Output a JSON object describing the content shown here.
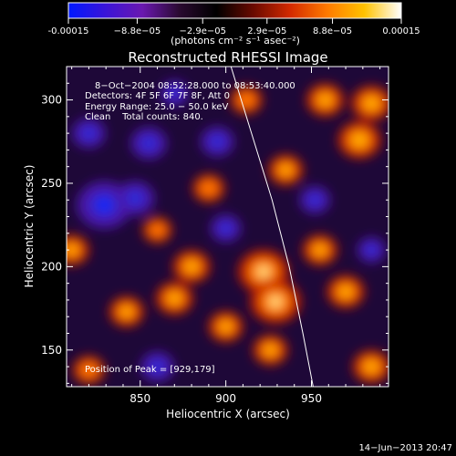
{
  "chart_data": {
    "type": "heatmap",
    "title": "Reconstructed RHESSI Image",
    "xlabel": "Heliocentric X (arcsec)",
    "ylabel": "Heliocentric Y (arcsec)",
    "xlim": [
      807,
      995
    ],
    "ylim": [
      128,
      320
    ],
    "x_ticks": [
      850,
      900,
      950
    ],
    "y_ticks": [
      150,
      200,
      250,
      300
    ],
    "colorbar": {
      "range": [
        -0.00015,
        0.00015
      ],
      "tick_values": [
        -0.00015,
        -8.8e-05,
        -2.9e-05,
        2.9e-05,
        8.8e-05,
        0.00015
      ],
      "tick_labels": [
        "-0.00015",
        "−8.8e−05",
        "−2.9e−05",
        "2.9e−05",
        "8.8e−05",
        "0.00015"
      ],
      "unit_label": "(photons cm⁻² s⁻¹ asec⁻²)",
      "colors": [
        "#0018ff",
        "#3a14d8",
        "#6a18b0",
        "#2a0a30",
        "#000000",
        "#6a0a00",
        "#d42a00",
        "#ff7a00",
        "#ffc200",
        "#ffffff"
      ]
    },
    "info_lines": [
      "8−Oct−2004 08:52:28.000 to 08:53:40.000",
      "Detectors: 4F 5F 6F 7F 8F, Att 0",
      "Energy Range: 25.0 − 50.0 keV",
      "Clean    Total counts: 840."
    ],
    "peak_label": "Position of Peak = [929,179]",
    "peak_position": [
      929,
      179
    ],
    "limb_curve": [
      [
        903,
        320
      ],
      [
        915,
        280
      ],
      [
        927,
        240
      ],
      [
        937,
        200
      ],
      [
        945,
        160
      ],
      [
        951,
        128
      ]
    ],
    "hot_spots": [
      {
        "x": 922,
        "y": 197,
        "value": 0.00015
      },
      {
        "x": 929,
        "y": 179,
        "value": 0.00015
      },
      {
        "x": 880,
        "y": 200,
        "value": 0.0001
      },
      {
        "x": 870,
        "y": 181,
        "value": 0.0001
      },
      {
        "x": 842,
        "y": 173,
        "value": 9e-05
      },
      {
        "x": 900,
        "y": 164,
        "value": 9e-05
      },
      {
        "x": 978,
        "y": 276,
        "value": 0.00012
      },
      {
        "x": 985,
        "y": 298,
        "value": 0.00011
      },
      {
        "x": 958,
        "y": 300,
        "value": 0.0001
      },
      {
        "x": 970,
        "y": 185,
        "value": 0.0001
      },
      {
        "x": 955,
        "y": 210,
        "value": 9e-05
      },
      {
        "x": 935,
        "y": 258,
        "value": 9e-05
      },
      {
        "x": 810,
        "y": 210,
        "value": 9e-05
      },
      {
        "x": 985,
        "y": 140,
        "value": 0.0001
      },
      {
        "x": 926,
        "y": 150,
        "value": 9e-05
      },
      {
        "x": 820,
        "y": 138,
        "value": 8e-05
      },
      {
        "x": 912,
        "y": 300,
        "value": 8e-05
      },
      {
        "x": 890,
        "y": 247,
        "value": 8e-05
      },
      {
        "x": 860,
        "y": 222,
        "value": 7e-05
      }
    ],
    "cold_spots": [
      {
        "x": 829,
        "y": 237,
        "value": -0.00015
      },
      {
        "x": 847,
        "y": 241,
        "value": -9e-05
      },
      {
        "x": 855,
        "y": 274,
        "value": -8e-05
      },
      {
        "x": 820,
        "y": 280,
        "value": -7e-05
      },
      {
        "x": 895,
        "y": 275,
        "value": -7e-05
      },
      {
        "x": 860,
        "y": 140,
        "value": -7e-05
      },
      {
        "x": 900,
        "y": 223,
        "value": -6e-05
      },
      {
        "x": 952,
        "y": 240,
        "value": -6e-05
      },
      {
        "x": 870,
        "y": 304,
        "value": -5e-05
      },
      {
        "x": 985,
        "y": 210,
        "value": -5e-05
      }
    ]
  },
  "footer_timestamp": "14−Jun−2013 20:47"
}
